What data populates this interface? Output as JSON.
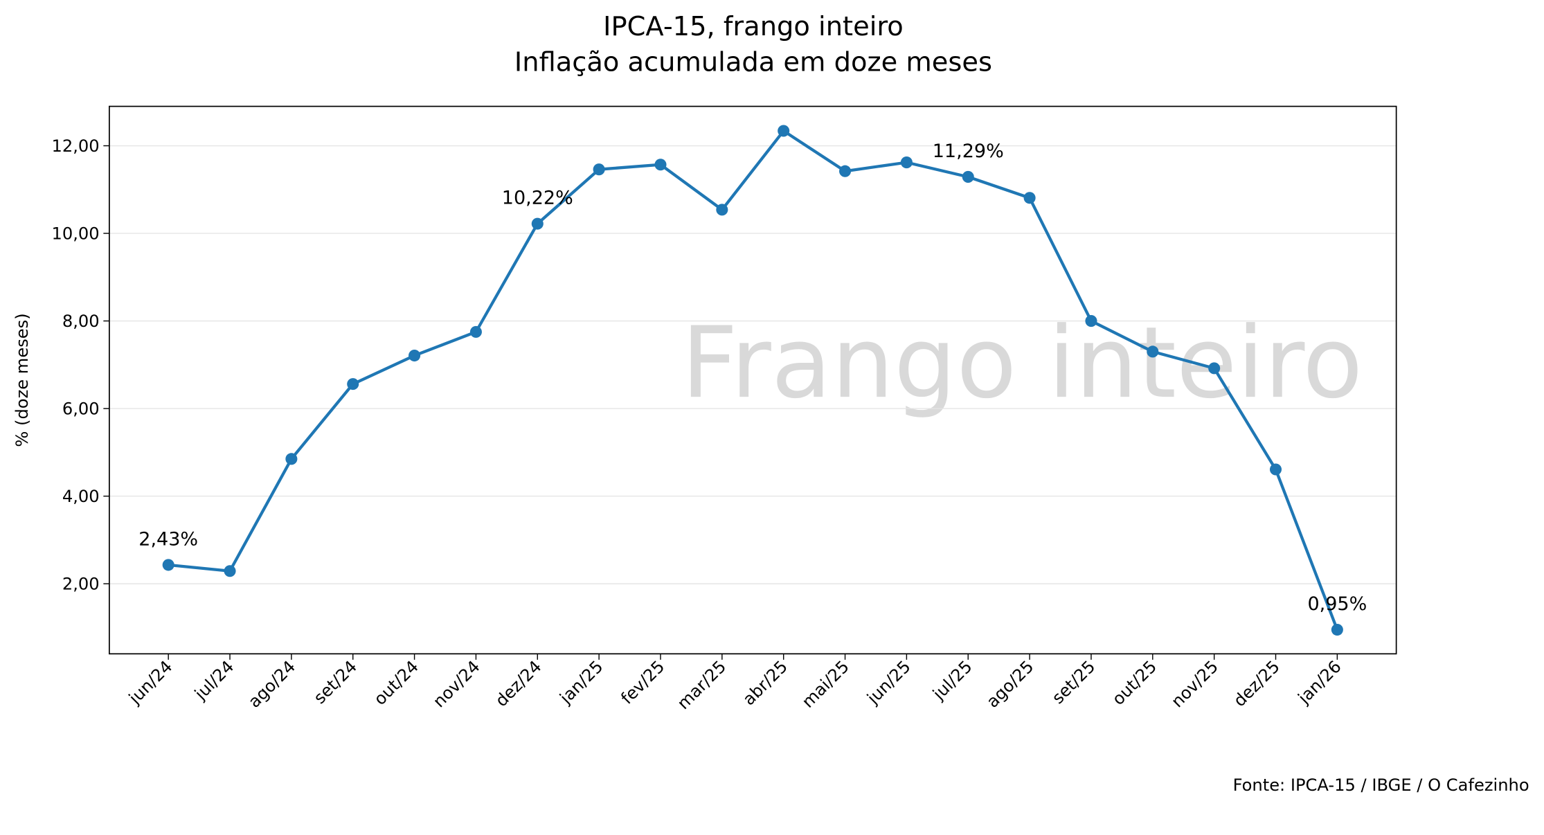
{
  "chart_data": {
    "type": "line",
    "title": "IPCA-15, frango inteiro",
    "subtitle": "Inflação acumulada em doze meses",
    "y_label": "% (doze meses)",
    "watermark": "Frango inteiro",
    "source": "Fonte: IPCA-15 / IBGE / O Cafezinho",
    "categories": [
      "jun/24",
      "jul/24",
      "ago/24",
      "set/24",
      "out/24",
      "nov/24",
      "dez/24",
      "jan/25",
      "fev/25",
      "mar/25",
      "abr/25",
      "mai/25",
      "jun/25",
      "jul/25",
      "ago/25",
      "set/25",
      "out/25",
      "nov/25",
      "dez/25",
      "jan/26"
    ],
    "series": [
      {
        "color": "#1f77b4",
        "values": [
          2.43,
          2.29,
          4.85,
          6.56,
          7.21,
          7.75,
          10.22,
          11.46,
          11.57,
          10.54,
          12.34,
          11.42,
          11.62,
          11.29,
          10.81,
          8.0,
          7.3,
          6.92,
          4.61,
          0.95
        ],
        "value_labels": [
          "2,43%",
          null,
          null,
          null,
          null,
          null,
          "10,22%",
          null,
          null,
          null,
          null,
          null,
          null,
          "11,29%",
          null,
          null,
          null,
          null,
          null,
          "0,95%"
        ]
      }
    ],
    "ylim": [
      0.4,
      12.9
    ],
    "yticks": [
      {
        "value": 2,
        "label": "2,00"
      },
      {
        "value": 4,
        "label": "4,00"
      },
      {
        "value": 6,
        "label": "6,00"
      },
      {
        "value": 8,
        "label": "8,00"
      },
      {
        "value": 10,
        "label": "10,00"
      },
      {
        "value": 12,
        "label": "12,00"
      }
    ],
    "grid": true
  }
}
